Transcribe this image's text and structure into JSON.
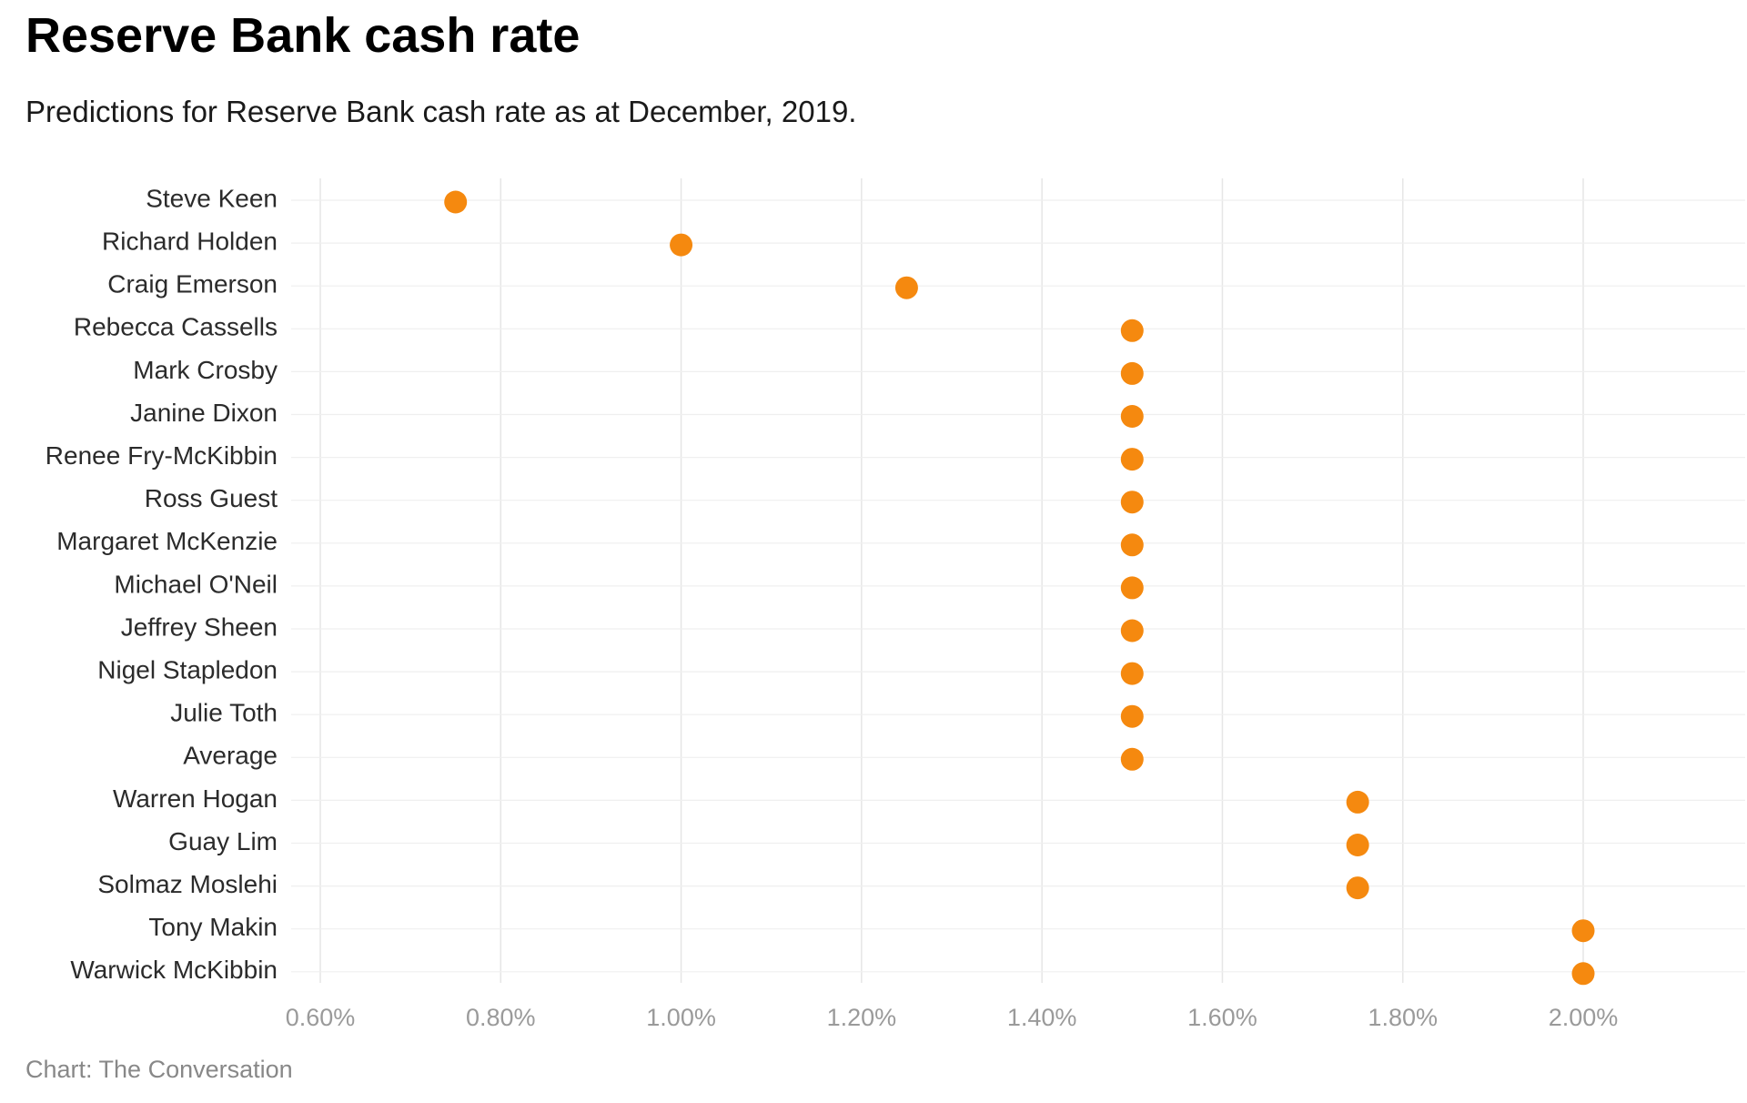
{
  "header": {
    "title": "Reserve Bank cash rate",
    "subtitle": "Predictions for Reserve Bank cash rate as at December, 2019."
  },
  "footer": {
    "credit": "Chart: The Conversation"
  },
  "colors": {
    "dot": "#F5890F",
    "grid": "#e6e6e6"
  },
  "chart_data": {
    "type": "scatter",
    "title": "Reserve Bank cash rate",
    "subtitle": "Predictions for Reserve Bank cash rate as at December, 2019.",
    "xlabel": "",
    "ylabel": "",
    "xlim": [
      0.6,
      2.15
    ],
    "x_ticks": [
      0.6,
      0.8,
      1.0,
      1.2,
      1.4,
      1.6,
      1.8,
      2.0
    ],
    "x_tick_labels": [
      "0.60%",
      "0.80%",
      "1.00%",
      "1.20%",
      "1.40%",
      "1.60%",
      "1.80%",
      "2.00%"
    ],
    "grid": true,
    "legend": "none",
    "categories": [
      "Steve Keen",
      "Richard Holden",
      "Craig Emerson",
      "Rebecca Cassells",
      "Mark Crosby",
      "Janine Dixon",
      "Renee Fry-McKibbin",
      "Ross Guest",
      "Margaret McKenzie",
      "Michael O'Neil",
      "Jeffrey Sheen",
      "Nigel Stapledon",
      "Julie Toth",
      "Average",
      "Warren Hogan",
      "Guay Lim",
      "Solmaz Moslehi",
      "Tony Makin",
      "Warwick McKibbin"
    ],
    "values": [
      0.75,
      1.0,
      1.25,
      1.5,
      1.5,
      1.5,
      1.5,
      1.5,
      1.5,
      1.5,
      1.5,
      1.5,
      1.5,
      1.5,
      1.75,
      1.75,
      1.75,
      2.0,
      2.0
    ]
  }
}
